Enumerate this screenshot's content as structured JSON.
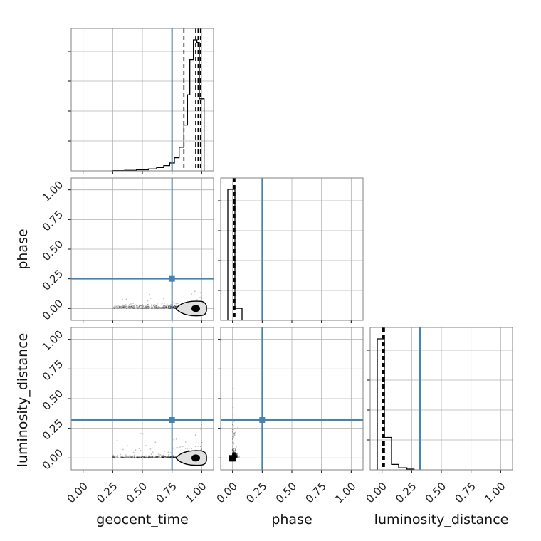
{
  "chart_data": [
    {
      "type": "histogram",
      "parameter": "geocent_time",
      "bin_edges": [
        0.25,
        0.35,
        0.45,
        0.55,
        0.62,
        0.68,
        0.73,
        0.77,
        0.81,
        0.85,
        0.88,
        0.9,
        0.93,
        0.96,
        0.98,
        1.02
      ],
      "counts": [
        0.002,
        0.004,
        0.008,
        0.015,
        0.025,
        0.04,
        0.06,
        0.1,
        0.18,
        0.35,
        0.58,
        0.85,
        1.0,
        0.98,
        0.55
      ],
      "quantiles": [
        0.85,
        0.95,
        0.97,
        0.99
      ],
      "truth": 0.75,
      "xlim": [
        -0.1,
        1.1
      ],
      "grid": true
    },
    {
      "type": "scatter+contour",
      "x_param": "geocent_time",
      "y_param": "phase",
      "truth": [
        0.75,
        0.25
      ],
      "xlim": [
        -0.1,
        1.1
      ],
      "ylim": [
        -0.1,
        1.1
      ],
      "density_peak": [
        0.95,
        0.0
      ],
      "grid": true
    },
    {
      "type": "histogram",
      "parameter": "phase",
      "bin_edges": [
        -0.04,
        0.02,
        0.08
      ],
      "counts": [
        0.98,
        0.09
      ],
      "quantiles": [
        0.01,
        0.015,
        0.02
      ],
      "truth": 0.25,
      "xlim": [
        -0.1,
        1.1
      ],
      "grid": true
    },
    {
      "type": "scatter+contour",
      "x_param": "geocent_time",
      "y_param": "luminosity_distance",
      "truth": [
        0.75,
        0.32
      ],
      "xlim": [
        -0.1,
        1.1
      ],
      "ylim": [
        -0.1,
        1.1
      ],
      "density_peak": [
        0.95,
        0.0
      ],
      "grid": true
    },
    {
      "type": "scatter+contour",
      "x_param": "phase",
      "y_param": "luminosity_distance",
      "truth": [
        0.25,
        0.32
      ],
      "xlim": [
        -0.1,
        1.1
      ],
      "ylim": [
        -0.1,
        1.1
      ],
      "density_peak": [
        0.0,
        0.0
      ],
      "grid": true
    },
    {
      "type": "histogram",
      "parameter": "luminosity_distance",
      "bin_edges": [
        -0.04,
        0.02,
        0.08,
        0.14,
        0.21,
        0.27
      ],
      "counts": [
        0.97,
        0.24,
        0.04,
        0.015,
        0.005
      ],
      "quantiles": [
        0.005,
        0.012,
        0.02
      ],
      "truth": 0.32,
      "xlim": [
        -0.1,
        1.1
      ],
      "grid": true
    }
  ],
  "axis_labels": {
    "geocent_time": "geocent_time",
    "phase": "phase",
    "luminosity_distance": "luminosity_distance"
  },
  "ticks": [
    "0.00",
    "0.25",
    "0.50",
    "0.75",
    "1.00"
  ],
  "colors": {
    "truth": "#4682b4",
    "hist": "#000000",
    "grid": "#b0b0b0",
    "frame": "#808080",
    "contour_fill": "#e0e0e0"
  }
}
